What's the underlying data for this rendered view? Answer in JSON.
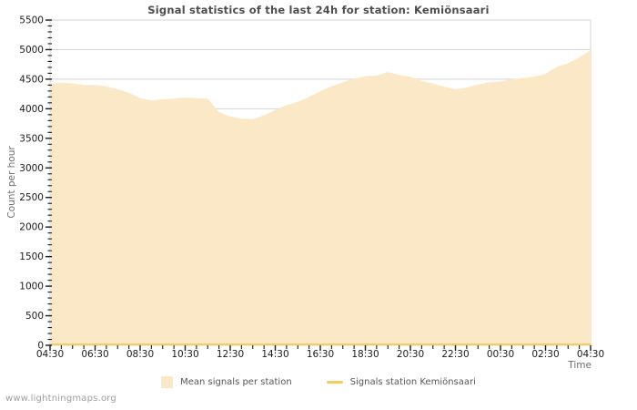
{
  "title": "Signal statistics of the last 24h for station: Kemiönsaari",
  "watermark": "www.lightningmaps.org",
  "axes": {
    "x_label": "Time",
    "y_label": "Count per hour"
  },
  "colors": {
    "area_fill": "#FAE8C7",
    "station_line": "#EFCF60",
    "grid": "#D4D4D4",
    "tick": "#1A1A1A",
    "tick_label": "#1A1A1A",
    "title_text": "#4D4D4D",
    "axis_name_text": "#6E6E6E",
    "legend_text": "#555555",
    "watermark_text": "#9E9E9E",
    "background": "#FFFFFF"
  },
  "legend": [
    {
      "type": "area",
      "label": "Mean signals per station",
      "color": "#FAE8C7"
    },
    {
      "type": "line",
      "label": "Signals station Kemiönsaari",
      "color": "#EFCF60"
    }
  ],
  "chart_data": {
    "type": "area",
    "title": "Signal statistics of the last 24h for station: Kemiönsaari",
    "xlabel": "Time",
    "ylabel": "Count per hour",
    "ylim": [
      0,
      5500
    ],
    "y_major_step": 500,
    "y_minor_step": 100,
    "x_major_every_points": 4,
    "grid": "horizontal",
    "legend_position": "bottom",
    "x": [
      "04:30",
      "05:00",
      "05:30",
      "06:00",
      "06:30",
      "07:00",
      "07:30",
      "08:00",
      "08:30",
      "09:00",
      "09:30",
      "10:00",
      "10:30",
      "11:00",
      "11:30",
      "12:00",
      "12:30",
      "13:00",
      "13:30",
      "14:00",
      "14:30",
      "15:00",
      "15:30",
      "16:00",
      "16:30",
      "17:00",
      "17:30",
      "18:00",
      "18:30",
      "19:00",
      "19:30",
      "20:00",
      "20:30",
      "21:00",
      "21:30",
      "22:00",
      "22:30",
      "23:00",
      "23:30",
      "00:00",
      "00:30",
      "01:00",
      "01:30",
      "02:00",
      "02:30",
      "03:00",
      "03:30",
      "04:00",
      "04:30"
    ],
    "series": [
      {
        "name": "Mean signals per station",
        "type": "area",
        "color": "#FAE8C7",
        "values": [
          4420,
          4440,
          4430,
          4400,
          4400,
          4380,
          4330,
          4270,
          4180,
          4140,
          4160,
          4170,
          4190,
          4180,
          4170,
          3940,
          3870,
          3830,
          3825,
          3890,
          3980,
          4060,
          4120,
          4200,
          4300,
          4380,
          4450,
          4510,
          4550,
          4560,
          4620,
          4570,
          4540,
          4470,
          4430,
          4370,
          4330,
          4360,
          4410,
          4450,
          4460,
          4500,
          4520,
          4540,
          4590,
          4710,
          4770,
          4870,
          4990
        ]
      },
      {
        "name": "Signals station Kemiönsaari",
        "type": "line",
        "color": "#EFCF60",
        "constant_value": 0
      }
    ]
  }
}
